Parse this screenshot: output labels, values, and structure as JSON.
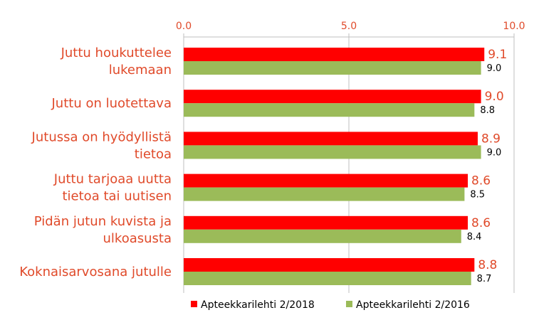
{
  "colors": {
    "series_2018": "#ff0000",
    "series_2016": "#9bbb59",
    "label_text": "#e04a2a",
    "tick_text": "#e04a2a",
    "value_2016_text": "#000000",
    "legend_text": "#000000",
    "grid": "#bfbfbf"
  },
  "chart_data": {
    "type": "bar",
    "orientation": "horizontal",
    "axis_position": "top",
    "xlim": [
      0,
      10
    ],
    "x_ticks": [
      "0.0",
      "5.0",
      "10.0"
    ],
    "x_tick_values": [
      0,
      5,
      10
    ],
    "grid": true,
    "legend_position": "bottom",
    "categories": [
      [
        "Juttu houkuttelee",
        "lukemaan"
      ],
      [
        "Juttu on luotettava"
      ],
      [
        "Jutussa on hyödyllistä",
        "tietoa"
      ],
      [
        "Juttu tarjoaa uutta",
        "tietoa tai uutisen"
      ],
      [
        "Pidän jutun kuvista ja",
        "ulkoasusta"
      ],
      [
        "Koknaisarvosana jutulle"
      ]
    ],
    "series": [
      {
        "name": "Apteekkarilehti 2/2018",
        "values": [
          9.1,
          9.0,
          8.9,
          8.6,
          8.6,
          8.8
        ],
        "labels": [
          "9.1",
          "9.0",
          "8.9",
          "8.6",
          "8.6",
          "8.8"
        ]
      },
      {
        "name": "Apteekkarilehti 2/2016",
        "values": [
          9.0,
          8.8,
          9.0,
          8.5,
          8.4,
          8.7
        ],
        "labels": [
          "9.0",
          "8.8",
          "9.0",
          "8.5",
          "8.4",
          "8.7"
        ]
      }
    ]
  }
}
